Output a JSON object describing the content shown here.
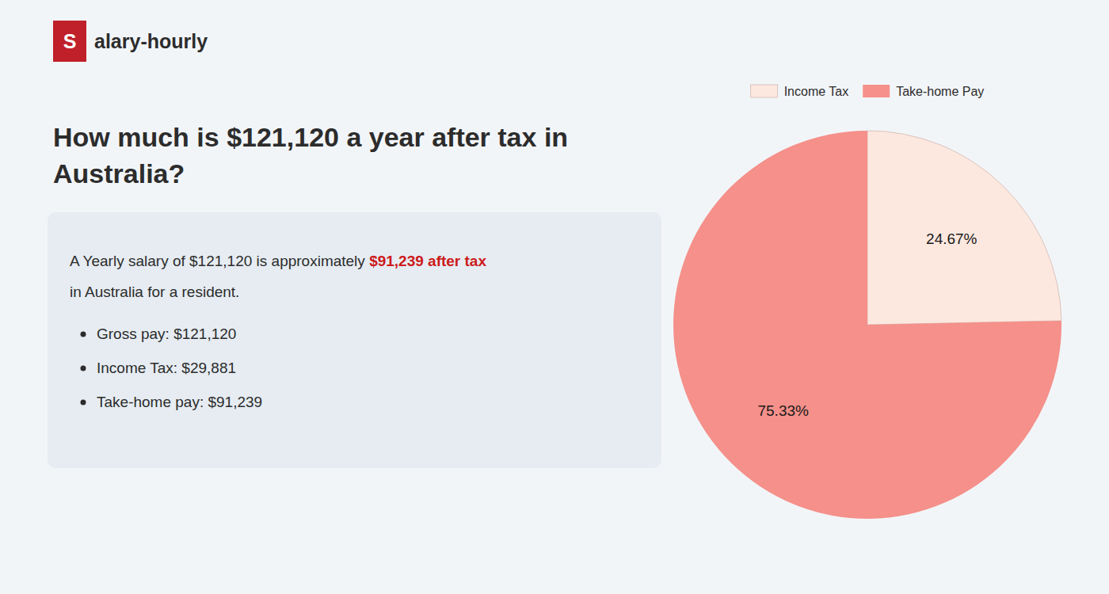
{
  "chart_data": {
    "type": "pie",
    "title": "How much is $121,120 a year after tax in\nAustralia?",
    "categories": [
      "Income Tax",
      "Take-home Pay"
    ],
    "values": [
      24.67,
      75.33
    ],
    "value_labels": [
      "24.67%",
      "75.33%"
    ],
    "colors": [
      "#fde8df",
      "#f5908a"
    ],
    "data_labels": true,
    "legend": "top",
    "annotations": [
      "S",
      "alary-hourly",
      "A Yearly salary of $121,120 is approximately ",
      "$91,239 after tax",
      "in Australia for a resident.",
      "Gross pay: $121,120",
      "Income Tax: $29,881",
      "Take-home pay: $91,239"
    ]
  }
}
